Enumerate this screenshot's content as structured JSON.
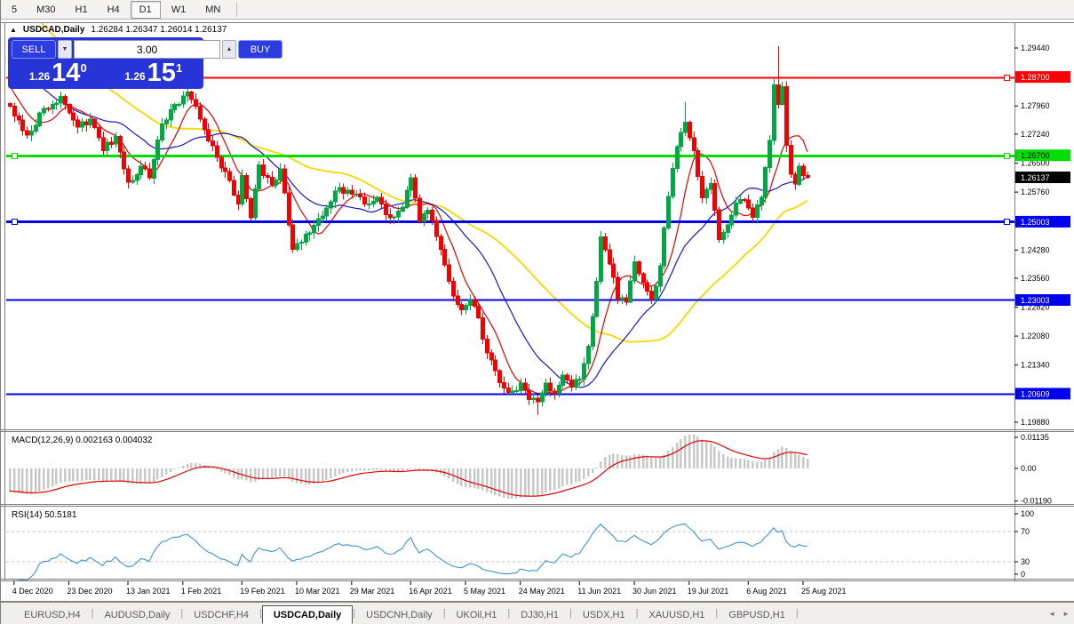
{
  "toolbar": {
    "timeframes": [
      "5",
      "M30",
      "H1",
      "H4",
      "D1",
      "W1",
      "MN"
    ],
    "active_timeframe": "D1"
  },
  "chart": {
    "title": {
      "symbol": "USDCAD,Daily",
      "ohlc": "1.26284 1.26347 1.26014 1.26137"
    },
    "trade_panel": {
      "sell_label": "SELL",
      "buy_label": "BUY",
      "volume": "3.00",
      "volume_down_icon": "▼",
      "volume_up_icon": "▲",
      "sell_price_main": "1.26",
      "sell_price_big": "14",
      "sell_price_sup": "0",
      "buy_price_main": "1.26",
      "buy_price_big": "15",
      "buy_price_sup": "1",
      "panel_color": "#2634d8"
    },
    "toggle_icon": "▲"
  },
  "chart_data": {
    "type": "candlestick",
    "symbol": "USDCAD",
    "timeframe": "Daily",
    "title_line": "USDCAD,Daily 1.26284 1.26347 1.26014 1.26137",
    "ohlc": {
      "open": 1.26284,
      "high": 1.26347,
      "low": 1.26014,
      "close": 1.26137
    },
    "bars": 190,
    "colors": {
      "up": "#00a843",
      "down": "#f40000",
      "level_red": "#ff0000",
      "level_green": "#00dd00",
      "level_blue": "#0000ee",
      "ma_fast": "#e00000",
      "ma_mid": "#1515c8",
      "ma_slow": "#f5d800",
      "macd_hist": "#c8c8c8",
      "macd_signal": "#e00000",
      "rsi_line": "#3e92d2"
    },
    "price_anchors": [
      [
        -60,
        1.332
      ],
      [
        -44,
        1.328
      ],
      [
        -30,
        1.33
      ],
      [
        -22,
        1.308
      ],
      [
        -16,
        1.296
      ],
      [
        -10,
        1.2985
      ],
      [
        -4,
        1.285
      ],
      [
        0,
        1.2795
      ],
      [
        4,
        1.2722
      ],
      [
        8,
        1.279
      ],
      [
        12,
        1.282
      ],
      [
        16,
        1.2742
      ],
      [
        19,
        1.2762
      ],
      [
        22,
        1.2682
      ],
      [
        25,
        1.2718
      ],
      [
        28,
        1.2601
      ],
      [
        31,
        1.2642
      ],
      [
        33,
        1.2612
      ],
      [
        36,
        1.275
      ],
      [
        39,
        1.28
      ],
      [
        42,
        1.2832
      ],
      [
        44,
        1.2795
      ],
      [
        46,
        1.2735
      ],
      [
        49,
        1.2665
      ],
      [
        51,
        1.2628
      ],
      [
        54,
        1.2545
      ],
      [
        55,
        1.2618
      ],
      [
        57,
        1.251
      ],
      [
        59,
        1.2645
      ],
      [
        62,
        1.2595
      ],
      [
        64,
        1.2635
      ],
      [
        67,
        1.243
      ],
      [
        69,
        1.2448
      ],
      [
        71,
        1.2472
      ],
      [
        74,
        1.2515
      ],
      [
        78,
        1.2588
      ],
      [
        81,
        1.257
      ],
      [
        84,
        1.2545
      ],
      [
        87,
        1.2562
      ],
      [
        90,
        1.251
      ],
      [
        93,
        1.2538
      ],
      [
        95,
        1.2612
      ],
      [
        97,
        1.2501
      ],
      [
        99,
        1.253
      ],
      [
        101,
        1.2463
      ],
      [
        103,
        1.239
      ],
      [
        105,
        1.231
      ],
      [
        107,
        1.2275
      ],
      [
        109,
        1.23
      ],
      [
        111,
        1.2255
      ],
      [
        113,
        1.2165
      ],
      [
        115,
        1.212
      ],
      [
        117,
        1.2075
      ],
      [
        119,
        1.2068
      ],
      [
        121,
        1.2088
      ],
      [
        123,
        1.2046
      ],
      [
        125,
        1.204
      ],
      [
        127,
        1.2088
      ],
      [
        129,
        1.2062
      ],
      [
        131,
        1.2108
      ],
      [
        133,
        1.2078
      ],
      [
        135,
        1.2098
      ],
      [
        137,
        1.2182
      ],
      [
        139,
        1.2348
      ],
      [
        140,
        1.2462
      ],
      [
        142,
        1.2392
      ],
      [
        144,
        1.2302
      ],
      [
        146,
        1.2295
      ],
      [
        148,
        1.2398
      ],
      [
        150,
        1.2345
      ],
      [
        152,
        1.2302
      ],
      [
        154,
        1.2388
      ],
      [
        156,
        1.2565
      ],
      [
        158,
        1.2692
      ],
      [
        160,
        1.2755
      ],
      [
        162,
        1.2682
      ],
      [
        164,
        1.2562
      ],
      [
        166,
        1.2598
      ],
      [
        168,
        1.2455
      ],
      [
        170,
        1.2492
      ],
      [
        172,
        1.2548
      ],
      [
        174,
        1.2556
      ],
      [
        176,
        1.2512
      ],
      [
        178,
        1.2562
      ],
      [
        180,
        1.2708
      ],
      [
        181,
        1.285
      ],
      [
        182,
        1.28
      ],
      [
        183,
        1.2845
      ],
      [
        184,
        1.2695
      ],
      [
        185,
        1.2622
      ],
      [
        186,
        1.2596
      ],
      [
        187,
        1.2642
      ],
      [
        188,
        1.2618
      ],
      [
        189,
        1.26137
      ]
    ],
    "wick_overrides": [
      {
        "i": 182,
        "high": 1.2949
      },
      {
        "i": 160,
        "high": 1.2807
      },
      {
        "i": 125,
        "low": 1.2007
      }
    ],
    "moving_averages": [
      {
        "name": "fast",
        "period": 8
      },
      {
        "name": "mid",
        "period": 21
      },
      {
        "name": "slow",
        "period": 45
      }
    ],
    "levels": [
      {
        "price": 1.287,
        "label": "1.28700",
        "color": "#ff0000",
        "width": 2,
        "label_fg": "#ffffff",
        "handles": [
          "right"
        ]
      },
      {
        "price": 1.267,
        "label": "1.26700",
        "color": "#00dd00",
        "width": 3,
        "label_fg": "#000000",
        "handles": [
          "left",
          "right"
        ]
      },
      {
        "price": 1.25003,
        "label": "1.25003",
        "color": "#0000ee",
        "width": 3,
        "label_fg": "#ffffff",
        "handles": [
          "left",
          "right"
        ]
      },
      {
        "price": 1.23003,
        "label": "1.23003",
        "color": "#0000ee",
        "width": 2,
        "label_fg": "#ffffff",
        "handles": []
      },
      {
        "price": 1.20609,
        "label": "1.20609",
        "color": "#0000ee",
        "width": 2,
        "label_fg": "#ffffff",
        "handles": []
      }
    ],
    "current_price": {
      "price": 1.26137,
      "label": "1.26137",
      "bg": "#000000",
      "fg": "#ffffff"
    },
    "price_axis_ticks": [
      {
        "price": 1.2944,
        "label": "1.29440"
      },
      {
        "price": 1.2796,
        "label": "1.27960"
      },
      {
        "price": 1.2724,
        "label": "1.27240"
      },
      {
        "price": 1.265,
        "label": "1.26500"
      },
      {
        "price": 1.2576,
        "label": "1.25760"
      },
      {
        "price": 1.2428,
        "label": "1.24280"
      },
      {
        "price": 1.2356,
        "label": "1.23560"
      },
      {
        "price": 1.2282,
        "label": "1.22820"
      },
      {
        "price": 1.2208,
        "label": "1.22080"
      },
      {
        "price": 1.2134,
        "label": "1.21340"
      },
      {
        "price": 1.1988,
        "label": "1.19880"
      }
    ],
    "date_ticks": [
      {
        "i": 1,
        "label": "4 Dec 2020"
      },
      {
        "i": 14,
        "label": "23 Dec 2020"
      },
      {
        "i": 28,
        "label": "13 Jan 2021"
      },
      {
        "i": 41,
        "label": "1 Feb 2021"
      },
      {
        "i": 55,
        "label": "19 Feb 2021"
      },
      {
        "i": 68,
        "label": "10 Mar 2021"
      },
      {
        "i": 81,
        "label": "29 Mar 2021"
      },
      {
        "i": 95,
        "label": "16 Apr 2021"
      },
      {
        "i": 108,
        "label": "5 May 2021"
      },
      {
        "i": 121,
        "label": "24 May 2021"
      },
      {
        "i": 135,
        "label": "11 Jun 2021"
      },
      {
        "i": 148,
        "label": "30 Jun 2021"
      },
      {
        "i": 161,
        "label": "19 Jul 2021"
      },
      {
        "i": 175,
        "label": "6 Aug 2021"
      },
      {
        "i": 188,
        "label": "25 Aug 2021"
      }
    ],
    "macd": {
      "label_full": "MACD(12,26,9) 0.002163 0.004032",
      "fast": 12,
      "slow": 26,
      "signal": 9,
      "value_main": 0.002163,
      "value_signal": 0.004032,
      "axis": [
        {
          "v": 0.01135,
          "label": "0.01135"
        },
        {
          "v": 0.0,
          "label": "0.00"
        },
        {
          "v": -0.0119,
          "label": "-0.01190"
        }
      ]
    },
    "rsi": {
      "label_full": "RSI(14) 50.5181",
      "period": 14,
      "value": 50.5181,
      "axis": [
        {
          "v": 100,
          "label": "100"
        },
        {
          "v": 70,
          "label": "70"
        },
        {
          "v": 30,
          "label": "30"
        },
        {
          "v": 0,
          "label": "0"
        }
      ],
      "dashed_levels": [
        70,
        30
      ]
    }
  },
  "tabs": {
    "items": [
      {
        "label": "EURUSD,H4",
        "active": false
      },
      {
        "label": "AUDUSD,Daily",
        "active": false
      },
      {
        "label": "USDCHF,H4",
        "active": false
      },
      {
        "label": "USDCAD,Daily",
        "active": true
      },
      {
        "label": "USDCNH,Daily",
        "active": false
      },
      {
        "label": "UKOil,H1",
        "active": false
      },
      {
        "label": "DJ30,H1",
        "active": false
      },
      {
        "label": "USDX,H1",
        "active": false
      },
      {
        "label": "XAUUSD,H1",
        "active": false
      },
      {
        "label": "GBPUSD,H1",
        "active": false
      }
    ],
    "scroll_left_icon": "◄",
    "scroll_right_icon": "►"
  }
}
